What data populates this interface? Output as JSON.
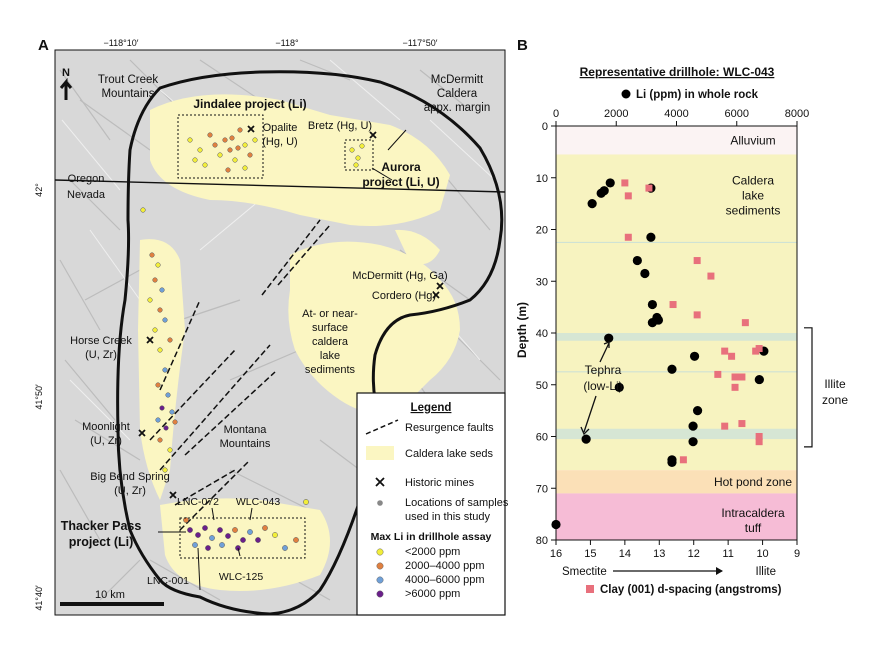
{
  "panel_a": {
    "label": "A",
    "top_ticks": [
      "−118°10′",
      "−118°",
      "−117°50′"
    ],
    "left_ticks": [
      "42°",
      "41°50′",
      "41°40′"
    ],
    "north": "N",
    "scale": "10 km",
    "places": {
      "trout_creek": [
        "Trout Creek",
        "Mountains"
      ],
      "mcdermitt_caldera": [
        "McDermitt",
        "Caldera",
        "appx. margin"
      ],
      "jindalee": "Jindalee project (Li)",
      "opalite": [
        "Opalite",
        "(Hg, U)"
      ],
      "bretz": "Bretz (Hg, U)",
      "aurora": [
        "Aurora",
        "project (Li, U)"
      ],
      "oregon": "Oregon",
      "nevada": "Nevada",
      "mcdermitt_mine": "McDermitt (Hg, Ga)",
      "cordero": "Cordero (Hg)",
      "horse_creek": [
        "Horse Creek",
        "(U, Zr)"
      ],
      "lake_sediments": [
        "At- or near-",
        "surface",
        "caldera",
        "lake",
        "sediments"
      ],
      "moonlight": [
        "Moonlight",
        "(U, Zr)"
      ],
      "montana": [
        "Montana",
        "Mountains"
      ],
      "big_bend": [
        "Big Bend Spring",
        "(U, Zr)"
      ],
      "lnc072": "LNC-072",
      "wlc043": "WLC-043",
      "thacker": [
        "Thacker Pass",
        "project (Li)"
      ],
      "lnc001": "LNC-001",
      "wlc125": "WLC-125"
    },
    "legend": {
      "title": "Legend",
      "faults": "Resurgence faults",
      "lake_seds": "Caldera lake seds",
      "mines": "Historic mines",
      "samples": [
        "Locations of samples",
        "used in this study"
      ],
      "li_title": "Max Li in drillhole assay",
      "classes": [
        {
          "label": "<2000 ppm",
          "color": "#f2ee3a"
        },
        {
          "label": "2000–4000 ppm",
          "color": "#e08040"
        },
        {
          "label": "4000–6000 ppm",
          "color": "#6fa0d8"
        },
        {
          "label": ">6000 ppm",
          "color": "#6a1f8a"
        }
      ]
    },
    "colors": {
      "lake": "#fbf6c2",
      "terrain": "#d9d9d9"
    }
  },
  "panel_b": {
    "label": "B",
    "title": "Representative drillhole: WLC-043",
    "top_legend": "Li (ppm) in whole rock",
    "bottom_legend": "Clay (001) d-spacing (angstroms)",
    "ylabel": "Depth (m)",
    "bottom_axis": {
      "left": "Smectite",
      "right": "Illite"
    },
    "zones": [
      {
        "label": "Alluvium",
        "top": 0,
        "bottom": 5.5,
        "color": "#fbf3f3"
      },
      {
        "label": "Caldera lake sediments",
        "top": 5.5,
        "bottom": 66.5,
        "color": "#f7f3c0"
      },
      {
        "label": "Hot pond zone",
        "top": 66.5,
        "bottom": 71,
        "color": "#fbe0b7"
      },
      {
        "label": "Intracaldera tuff",
        "top": 71,
        "bottom": 80,
        "color": "#f6bcd6"
      }
    ],
    "tephra_bands": [
      {
        "top": 40,
        "bottom": 41.5
      },
      {
        "top": 58.5,
        "bottom": 60.5
      }
    ],
    "faint_lines": [
      22.5,
      47.5
    ],
    "tephra_label": [
      "Tephra",
      "(low-Li)"
    ],
    "illite_zone": {
      "label": [
        "Illite",
        "zone"
      ],
      "top": 39,
      "bottom": 62
    }
  },
  "chart_data": {
    "type": "scatter",
    "title": "Representative drillhole: WLC-043",
    "ylabel": "Depth (m)",
    "ylim": [
      0,
      80
    ],
    "top_axis": {
      "label": "Li (ppm) in whole rock",
      "range": [
        0,
        8000
      ],
      "ticks": [
        0,
        2000,
        4000,
        6000,
        8000
      ]
    },
    "bottom_axis": {
      "label": "Clay (001) d-spacing (angstroms)",
      "range": [
        16,
        9
      ],
      "ticks": [
        16,
        15,
        14,
        13,
        12,
        11,
        10,
        9
      ]
    },
    "yticks": [
      0,
      10,
      20,
      30,
      40,
      50,
      60,
      70,
      80
    ],
    "series": [
      {
        "name": "Li (ppm) in whole rock",
        "axis": "top",
        "color": "#000000",
        "points": [
          {
            "x": 1800,
            "y": 11
          },
          {
            "x": 1500,
            "y": 13
          },
          {
            "x": 1600,
            "y": 12.5
          },
          {
            "x": 3150,
            "y": 12
          },
          {
            "x": 1200,
            "y": 15
          },
          {
            "x": 3150,
            "y": 21.5
          },
          {
            "x": 2700,
            "y": 26
          },
          {
            "x": 2950,
            "y": 28.5
          },
          {
            "x": 3200,
            "y": 34.5
          },
          {
            "x": 3350,
            "y": 37
          },
          {
            "x": 3200,
            "y": 38
          },
          {
            "x": 3400,
            "y": 37.5
          },
          {
            "x": 1750,
            "y": 41
          },
          {
            "x": 4600,
            "y": 44.5
          },
          {
            "x": 6900,
            "y": 43.5
          },
          {
            "x": 3850,
            "y": 47
          },
          {
            "x": 6750,
            "y": 49
          },
          {
            "x": 2100,
            "y": 50.5
          },
          {
            "x": 4700,
            "y": 55
          },
          {
            "x": 4550,
            "y": 58
          },
          {
            "x": 4550,
            "y": 61
          },
          {
            "x": 3850,
            "y": 64.5
          },
          {
            "x": 3850,
            "y": 65
          },
          {
            "x": 1000,
            "y": 60.5
          },
          {
            "x": 0,
            "y": 77
          }
        ]
      },
      {
        "name": "Clay (001) d-spacing (angstroms)",
        "axis": "bottom",
        "color": "#e8707c",
        "points": [
          {
            "x": 14.0,
            "y": 11
          },
          {
            "x": 13.3,
            "y": 12
          },
          {
            "x": 13.9,
            "y": 13.5
          },
          {
            "x": 13.9,
            "y": 21.5
          },
          {
            "x": 11.9,
            "y": 26
          },
          {
            "x": 11.5,
            "y": 29
          },
          {
            "x": 12.6,
            "y": 34.5
          },
          {
            "x": 11.9,
            "y": 36.5
          },
          {
            "x": 10.5,
            "y": 38
          },
          {
            "x": 10.2,
            "y": 43.5
          },
          {
            "x": 10.1,
            "y": 43
          },
          {
            "x": 11.1,
            "y": 43.5
          },
          {
            "x": 10.9,
            "y": 44.5
          },
          {
            "x": 11.3,
            "y": 48
          },
          {
            "x": 10.6,
            "y": 48.5
          },
          {
            "x": 10.8,
            "y": 48.5
          },
          {
            "x": 10.8,
            "y": 50.5
          },
          {
            "x": 11.1,
            "y": 58
          },
          {
            "x": 10.6,
            "y": 57.5
          },
          {
            "x": 10.1,
            "y": 60
          },
          {
            "x": 10.1,
            "y": 61
          },
          {
            "x": 12.3,
            "y": 64.5
          }
        ]
      }
    ]
  }
}
